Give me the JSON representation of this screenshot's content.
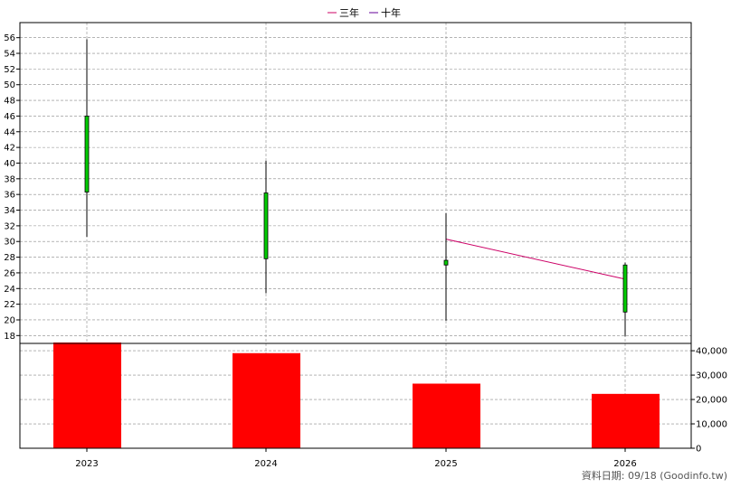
{
  "chart_data": {
    "type": "candlestick+bar",
    "legend": [
      {
        "name": "三年",
        "color": "#cc0066"
      },
      {
        "name": "十年",
        "color": "#660099"
      }
    ],
    "categories": [
      "2023",
      "2024",
      "2025",
      "2026"
    ],
    "price_axis": {
      "ylim": [
        17,
        57
      ],
      "ticks": [
        18,
        20,
        22,
        24,
        26,
        28,
        30,
        32,
        34,
        36,
        38,
        40,
        42,
        44,
        46,
        48,
        50,
        52,
        54,
        56
      ]
    },
    "volume_axis": {
      "ylim": [
        0,
        43000
      ],
      "ticks": [
        0,
        10000,
        20000,
        30000,
        40000
      ],
      "tick_labels": [
        "0",
        "10,000",
        "20,000",
        "30,000",
        "40,000"
      ]
    },
    "candles": [
      {
        "year": "2023",
        "open": 46.0,
        "close": 36.3,
        "high": 55.8,
        "low": 30.6
      },
      {
        "year": "2024",
        "open": 36.2,
        "close": 27.8,
        "high": 40.3,
        "low": 23.4
      },
      {
        "year": "2025",
        "open": 27.6,
        "close": 27.0,
        "high": 33.6,
        "low": 19.9
      },
      {
        "year": "2026",
        "open": 27.0,
        "close": 21.0,
        "high": 27.3,
        "low": 17.9
      }
    ],
    "three_year_line": [
      {
        "year": "2025",
        "value": 30.3
      },
      {
        "year": "2026",
        "value": 25.2
      }
    ],
    "volume": [
      {
        "year": "2023",
        "value": 43500
      },
      {
        "year": "2024",
        "value": 39000
      },
      {
        "year": "2025",
        "value": 26500
      },
      {
        "year": "2026",
        "value": 22300
      }
    ],
    "colors": {
      "candle": "#00cc00",
      "volume": "#ff0000",
      "grid": "#888888"
    },
    "grid": true,
    "footer": "資料日期: 09/18  (Goodinfo.tw)"
  }
}
